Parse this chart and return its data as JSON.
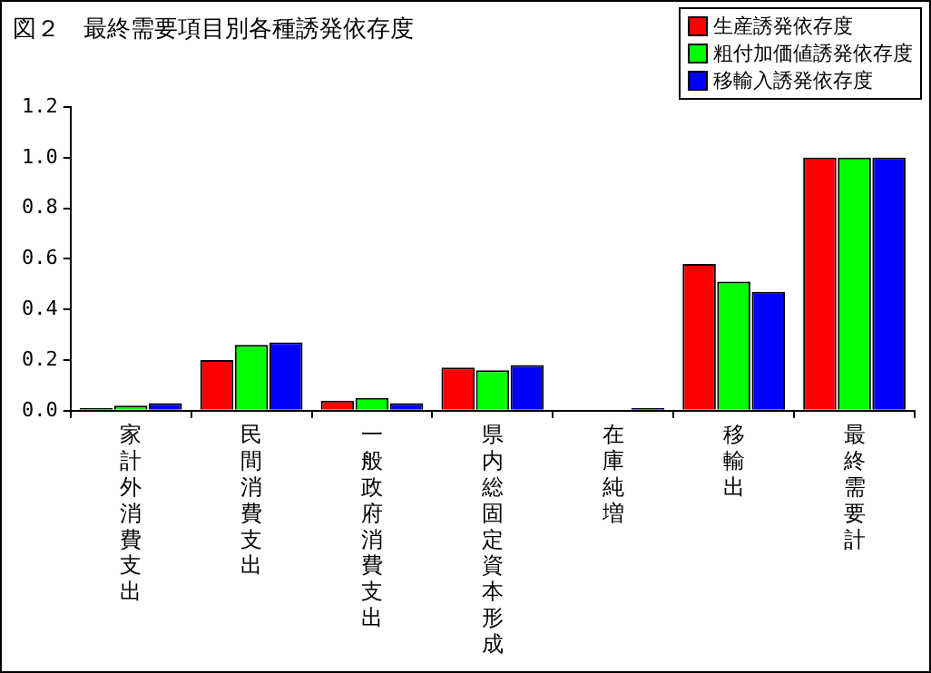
{
  "chart_data": {
    "type": "bar",
    "title": "図２　最終需要項目別各種誘発依存度",
    "categories": [
      "家計外消費支出",
      "民間消費支出",
      "一般政府消費支出",
      "県内総固定資本形成",
      "在庫純増",
      "移輸出",
      "最終需要計"
    ],
    "series": [
      {
        "name": "生産誘発依存度",
        "color": "#ff0000",
        "values": [
          0.01,
          0.2,
          0.04,
          0.17,
          0,
          0.58,
          1.0
        ]
      },
      {
        "name": "粗付加価値誘発依存度",
        "color": "#00ff00",
        "values": [
          0.02,
          0.26,
          0.05,
          0.16,
          0,
          0.51,
          1.0
        ]
      },
      {
        "name": "移輸入誘発依存度",
        "color": "#0000ff",
        "values": [
          0.03,
          0.27,
          0.03,
          0.18,
          0.01,
          0.47,
          1.0
        ]
      }
    ],
    "ylim": [
      0,
      1.2
    ],
    "yticks": [
      {
        "value": 0,
        "label": "0.0"
      },
      {
        "value": 0.2,
        "label": "0.2"
      },
      {
        "value": 0.4,
        "label": "0.4"
      },
      {
        "value": 0.6,
        "label": "0.6"
      },
      {
        "value": 0.8,
        "label": "0.8"
      },
      {
        "value": 1.0,
        "label": "1.0"
      },
      {
        "value": 1.2,
        "label": "1.2"
      }
    ],
    "grid": false,
    "legend": "top right"
  }
}
